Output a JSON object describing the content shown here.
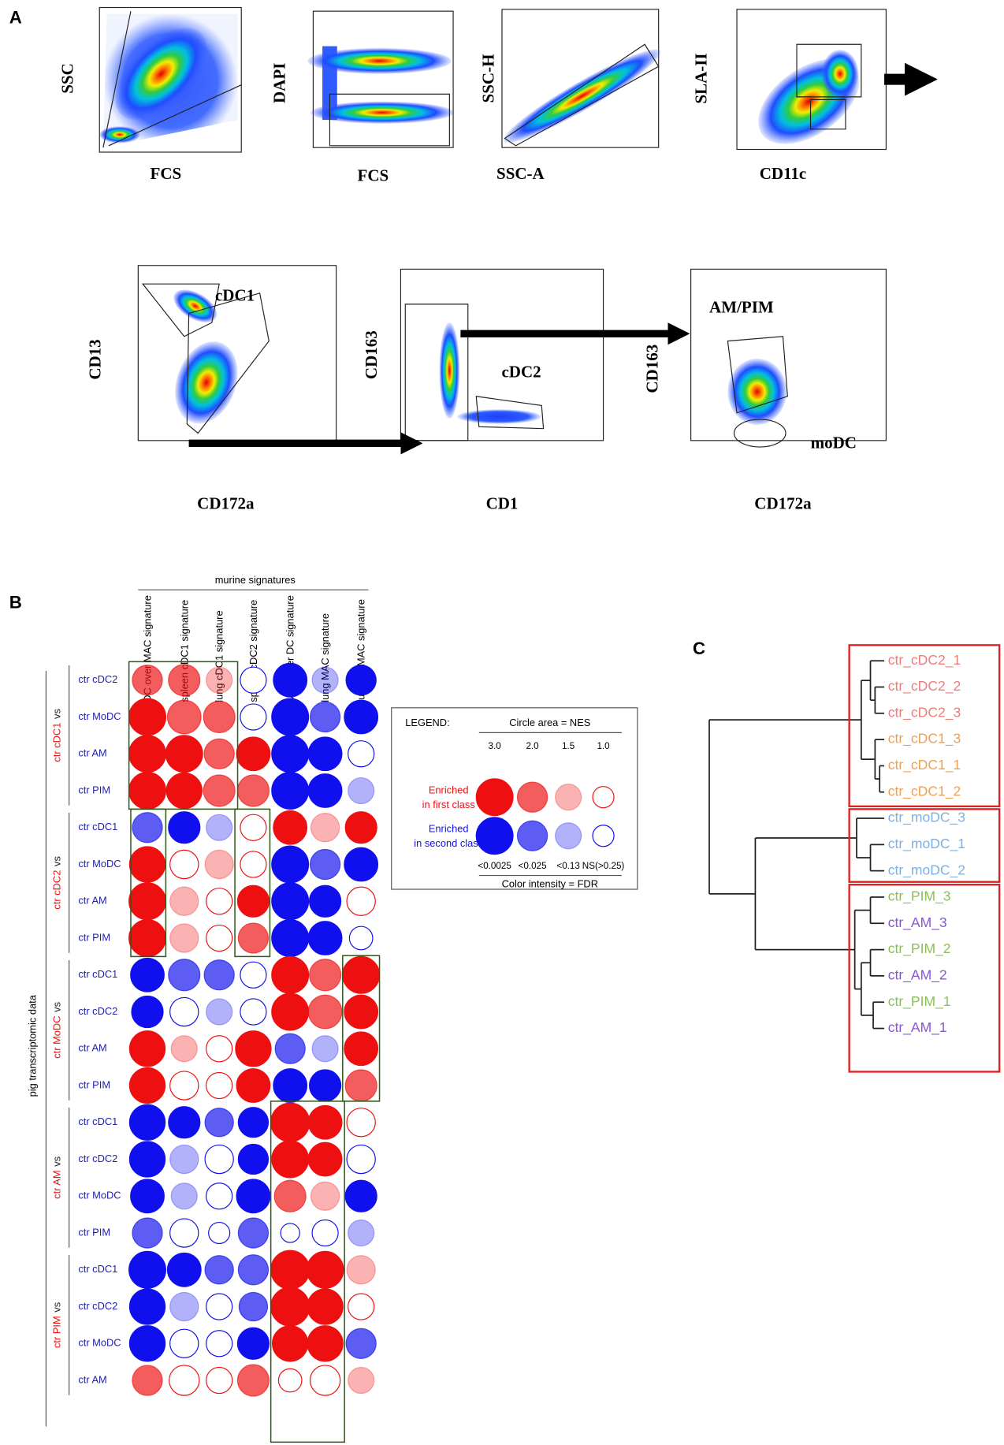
{
  "panel_a": {
    "label": "A",
    "plots": [
      {
        "y_label": "SSC",
        "x_label": "FCS"
      },
      {
        "y_label": "DAPI",
        "x_label": "FCS"
      },
      {
        "y_label": "SSC-H",
        "x_label": "SSC-A"
      },
      {
        "y_label": "SLA-II",
        "x_label": "CD11c"
      },
      {
        "y_label": "CD13",
        "x_label": "CD172a"
      },
      {
        "y_label": "CD163",
        "x_label": "CD1"
      },
      {
        "y_label": "CD163",
        "x_label": "CD172a"
      }
    ],
    "gate_labels": [
      "cDC1",
      "cDC2",
      "AM/PIM",
      "moDC"
    ]
  },
  "panel_b": {
    "label": "B",
    "header": "murine signatures",
    "side_label": "pig transcriptomic data",
    "columns": [
      "DC over MAC signature",
      "spleen cDC1 signature",
      "lung cDC1 signature",
      "spleen cDC2 signature",
      "MAC over DC signature",
      "lung MAC signature",
      "lung MoMAC signature"
    ],
    "first_color": "#ee1010",
    "second_color": "#1010ee",
    "groups": [
      {
        "name": "ctr cDC1",
        "vs": "vs",
        "rows": [
          {
            "label": "ctr cDC2",
            "nes": [
              2.0,
              2.2,
              1.5,
              -1.5,
              -2.5,
              -1.5,
              -2.0
            ],
            "fdr": [
              0.025,
              0.025,
              0.13,
              0.25,
              0.0025,
              0.13,
              0.0025
            ]
          },
          {
            "label": "ctr MoDC",
            "nes": [
              3.0,
              2.5,
              2.2,
              -1.5,
              -3.0,
              -2.0,
              -2.5
            ],
            "fdr": [
              0.0025,
              0.025,
              0.025,
              0.25,
              0.0025,
              0.025,
              0.0025
            ]
          },
          {
            "label": "ctr AM",
            "nes": [
              3.0,
              3.0,
              2.0,
              2.5,
              -3.0,
              -2.5,
              -1.5
            ],
            "fdr": [
              0.0025,
              0.0025,
              0.025,
              0.0025,
              0.0025,
              0.0025,
              0.25
            ]
          },
          {
            "label": "ctr PIM",
            "nes": [
              3.0,
              2.8,
              2.2,
              2.2,
              -3.0,
              -2.5,
              -1.5
            ],
            "fdr": [
              0.0025,
              0.0025,
              0.025,
              0.025,
              0.0025,
              0.0025,
              0.13
            ]
          }
        ]
      },
      {
        "name": "ctr cDC2",
        "vs": "vs",
        "rows": [
          {
            "label": "ctr cDC1",
            "nes": [
              -2.0,
              -2.2,
              -1.5,
              1.5,
              2.5,
              1.8,
              2.2
            ],
            "fdr": [
              0.025,
              0.0025,
              0.13,
              0.25,
              0.0025,
              0.13,
              0.0025
            ]
          },
          {
            "label": "ctr MoDC",
            "nes": [
              2.8,
              1.8,
              1.8,
              1.5,
              -3.0,
              -2.0,
              -2.5
            ],
            "fdr": [
              0.0025,
              0.25,
              0.13,
              0.25,
              0.0025,
              0.025,
              0.0025
            ]
          },
          {
            "label": "ctr AM",
            "nes": [
              3.0,
              1.8,
              1.5,
              2.2,
              -3.0,
              -2.2,
              1.8
            ],
            "fdr": [
              0.0025,
              0.13,
              0.25,
              0.0025,
              0.0025,
              0.0025,
              0.25
            ]
          },
          {
            "label": "ctr PIM",
            "nes": [
              3.0,
              1.8,
              1.5,
              2.0,
              -3.0,
              -2.5,
              -1.2
            ],
            "fdr": [
              0.0025,
              0.13,
              0.25,
              0.025,
              0.0025,
              0.0025,
              0.25
            ]
          }
        ]
      },
      {
        "name": "ctr MoDC",
        "vs": "vs",
        "rows": [
          {
            "label": "ctr cDC1",
            "nes": [
              -2.5,
              -2.2,
              -2.0,
              -1.5,
              3.0,
              2.2,
              3.0
            ],
            "fdr": [
              0.0025,
              0.025,
              0.025,
              0.25,
              0.0025,
              0.025,
              0.0025
            ]
          },
          {
            "label": "ctr cDC2",
            "nes": [
              -2.2,
              -1.8,
              -1.5,
              -1.5,
              3.0,
              2.5,
              2.5
            ],
            "fdr": [
              0.0025,
              0.25,
              0.13,
              0.25,
              0.0025,
              0.025,
              0.0025
            ]
          },
          {
            "label": "ctr AM",
            "nes": [
              2.8,
              1.5,
              1.5,
              2.8,
              -2.0,
              -1.5,
              2.5
            ],
            "fdr": [
              0.0025,
              0.13,
              0.25,
              0.0025,
              0.025,
              0.13,
              0.0025
            ]
          },
          {
            "label": "ctr PIM",
            "nes": [
              2.8,
              1.8,
              1.5,
              2.5,
              -2.5,
              -2.2,
              2.2
            ],
            "fdr": [
              0.0025,
              0.25,
              0.25,
              0.0025,
              0.0025,
              0.0025,
              0.025
            ]
          }
        ]
      },
      {
        "name": "ctr AM",
        "vs": "vs",
        "rows": [
          {
            "label": "ctr cDC1",
            "nes": [
              -2.8,
              -2.2,
              -1.8,
              -2.0,
              3.3,
              2.5,
              1.8
            ],
            "fdr": [
              0.0025,
              0.0025,
              0.025,
              0.0025,
              0.0025,
              0.0025,
              0.25
            ]
          },
          {
            "label": "ctr cDC2",
            "nes": [
              -2.8,
              -1.8,
              -1.8,
              -2.0,
              3.0,
              2.5,
              -1.8
            ],
            "fdr": [
              0.0025,
              0.13,
              0.25,
              0.0025,
              0.0025,
              0.0025,
              0.25
            ]
          },
          {
            "label": "ctr MoDC",
            "nes": [
              -2.5,
              -1.5,
              -1.5,
              -2.5,
              2.2,
              1.8,
              -2.2
            ],
            "fdr": [
              0.0025,
              0.13,
              0.25,
              0.0025,
              0.025,
              0.13,
              0.0025
            ]
          },
          {
            "label": "ctr PIM",
            "nes": [
              -2.0,
              -1.8,
              -1.0,
              -2.0,
              -0.8,
              -1.5,
              -1.5
            ],
            "fdr": [
              0.025,
              0.25,
              0.25,
              0.025,
              0.25,
              0.25,
              0.13
            ]
          }
        ]
      },
      {
        "name": "ctr PIM",
        "vs": "vs",
        "rows": [
          {
            "label": "ctr cDC1",
            "nes": [
              -3.0,
              -2.5,
              -1.8,
              -2.0,
              3.3,
              3.0,
              1.8
            ],
            "fdr": [
              0.0025,
              0.0025,
              0.025,
              0.025,
              0.0025,
              0.0025,
              0.13
            ]
          },
          {
            "label": "ctr cDC2",
            "nes": [
              -2.8,
              -1.8,
              -1.5,
              -1.8,
              3.3,
              2.8,
              1.5
            ],
            "fdr": [
              0.0025,
              0.13,
              0.25,
              0.025,
              0.0025,
              0.0025,
              0.25
            ]
          },
          {
            "label": "ctr MoDC",
            "nes": [
              -2.8,
              -1.8,
              -1.5,
              -2.2,
              2.8,
              2.8,
              -2.0
            ],
            "fdr": [
              0.0025,
              0.25,
              0.25,
              0.0025,
              0.0025,
              0.0025,
              0.025
            ]
          },
          {
            "label": "ctr AM",
            "nes": [
              2.0,
              2.0,
              1.5,
              2.2,
              1.2,
              2.0,
              1.5
            ],
            "fdr": [
              0.025,
              0.25,
              0.25,
              0.025,
              0.25,
              0.25,
              0.13
            ]
          }
        ]
      }
    ],
    "legend": {
      "title": "LEGEND:",
      "size_title": "Circle area = NES",
      "nes_levels": [
        {
          "value": 3,
          "label": "3.0"
        },
        {
          "value": 2,
          "label": "2.0"
        },
        1.5,
        {
          "value": 1,
          "label": "1.0"
        }
      ],
      "first_class": [
        "Enriched",
        "in first class"
      ],
      "second_class": [
        "Enriched",
        "in second class"
      ],
      "fdr_levels": [
        {
          "value": 0.0025,
          "label": "<0.0025"
        },
        {
          "value": 0.025,
          "label": "<0.025"
        },
        {
          "value": 0.13,
          "label": "<0.13"
        },
        {
          "value": 0.25,
          "label": "NS(>0.25)"
        }
      ],
      "color_title": "Color intensity = FDR"
    }
  },
  "panel_c": {
    "label": "C",
    "leaves": [
      {
        "label": "ctr_cDC2_1",
        "color": "#ee7d7a"
      },
      {
        "label": "ctr_cDC2_2",
        "color": "#ee7d7a"
      },
      {
        "label": "ctr_cDC2_3",
        "color": "#ee7d7a"
      },
      {
        "label": "ctr_cDC1_3",
        "color": "#f0a050"
      },
      {
        "label": "ctr_cDC1_1",
        "color": "#f0a050"
      },
      {
        "label": "ctr_cDC1_2",
        "color": "#f0a050"
      },
      {
        "label": "ctr_moDC_3",
        "color": "#7fb0df"
      },
      {
        "label": "ctr_moDC_1",
        "color": "#7fb0df"
      },
      {
        "label": "ctr_moDC_2",
        "color": "#7fb0df"
      },
      {
        "label": "ctr_PIM_3",
        "color": "#8cbf5a"
      },
      {
        "label": "ctr_AM_3",
        "color": "#8a55d5"
      },
      {
        "label": "ctr_PIM_2",
        "color": "#8cbf5a"
      },
      {
        "label": "ctr_AM_2",
        "color": "#8a55d5"
      },
      {
        "label": "ctr_PIM_1",
        "color": "#8cbf5a"
      },
      {
        "label": "ctr_AM_1",
        "color": "#8a55d5"
      }
    ]
  }
}
